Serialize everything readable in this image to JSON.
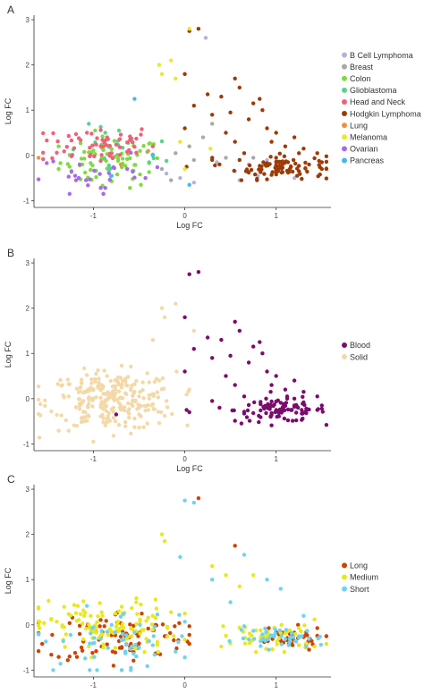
{
  "panels": [
    {
      "letter": "A",
      "chart_data": {
        "type": "scatter",
        "xlabel": "Log FC",
        "ylabel": "Log FC",
        "xlim": [
          -1.65,
          1.6
        ],
        "ylim": [
          -1.15,
          3.1
        ],
        "xticks": [
          -1,
          0,
          1
        ],
        "yticks": [
          -1,
          0,
          1,
          2,
          3
        ],
        "grid": false,
        "legend_position": "right",
        "series": [
          {
            "name": "B Cell Lymphoma",
            "color": "#b4b2dc",
            "points": [
              [
                0.23,
                2.6
              ],
              [
                -0.05,
                -0.5
              ],
              [
                0.6,
                -0.55
              ],
              [
                0.8,
                -0.45
              ],
              [
                1.05,
                -0.3
              ],
              [
                0.9,
                -0.1
              ],
              [
                0.35,
                -0.15
              ],
              [
                0.55,
                -0.35
              ],
              [
                1.2,
                -0.5
              ],
              [
                0.1,
                -0.6
              ],
              [
                0.7,
                -0.2
              ],
              [
                -0.2,
                -0.4
              ]
            ]
          },
          {
            "name": "Breast",
            "color": "#a8a8a8",
            "points": [
              [
                0.3,
                0.7
              ],
              [
                -0.1,
                0.05
              ],
              [
                0.1,
                -0.1
              ],
              [
                -0.25,
                -0.3
              ],
              [
                0.05,
                0.2
              ],
              [
                0.45,
                -0.05
              ],
              [
                -0.15,
                -0.55
              ],
              [
                0.2,
                0.4
              ],
              [
                0.75,
                -0.05
              ],
              [
                1.0,
                -0.2
              ]
            ]
          },
          {
            "name": "Colon",
            "color": "#7ddc3e",
            "points": []
          },
          {
            "name": "Glioblastoma",
            "color": "#55d38e",
            "points": []
          },
          {
            "name": "Head and Neck",
            "color": "#f0607a",
            "points": []
          },
          {
            "name": "Hodgkin Lymphoma",
            "color": "#9b3b06",
            "points": []
          },
          {
            "name": "Lung",
            "color": "#f09040",
            "points": [
              [
                -1.6,
                -0.05
              ],
              [
                -0.7,
                -0.2
              ],
              [
                -0.4,
                0.1
              ]
            ]
          },
          {
            "name": "Melanoma",
            "color": "#e8e830",
            "points": [
              [
                -0.28,
                2.0
              ],
              [
                -0.25,
                1.8
              ],
              [
                -0.15,
                2.1
              ],
              [
                -0.1,
                1.7
              ],
              [
                0.05,
                2.8
              ],
              [
                0.28,
                0.15
              ],
              [
                -0.05,
                0.3
              ],
              [
                0.0,
                -0.3
              ]
            ]
          },
          {
            "name": "Ovarian",
            "color": "#a66be8",
            "points": []
          },
          {
            "name": "Pancreas",
            "color": "#48b8e8",
            "points": [
              [
                -0.55,
                1.25
              ],
              [
                -0.8,
                -0.45
              ],
              [
                -0.35,
                0.0
              ],
              [
                0.05,
                -0.65
              ]
            ]
          }
        ]
      }
    },
    {
      "letter": "B",
      "chart_data": {
        "type": "scatter",
        "xlabel": "Log FC",
        "ylabel": "Log FC",
        "xlim": [
          -1.65,
          1.6
        ],
        "ylim": [
          -1.15,
          3.1
        ],
        "xticks": [
          -1,
          0,
          1
        ],
        "yticks": [
          -1,
          0,
          1,
          2,
          3
        ],
        "grid": false,
        "legend_position": "right",
        "series": [
          {
            "name": "Blood",
            "color": "#7a0c6e",
            "points": []
          },
          {
            "name": "Solid",
            "color": "#f3d9a8",
            "points": []
          }
        ]
      }
    },
    {
      "letter": "C",
      "chart_data": {
        "type": "scatter",
        "xlabel": "Log FC",
        "ylabel": "Log FC",
        "xlim": [
          -1.65,
          1.6
        ],
        "ylim": [
          -1.15,
          3.1
        ],
        "xticks": [
          -1,
          0,
          1
        ],
        "yticks": [
          -1,
          0,
          1,
          2,
          3
        ],
        "grid": false,
        "legend_position": "right",
        "series": [
          {
            "name": "Long",
            "color": "#cc4400",
            "points": []
          },
          {
            "name": "Medium",
            "color": "#e8e81e",
            "points": []
          },
          {
            "name": "Short",
            "color": "#6fd3ee",
            "points": []
          }
        ]
      }
    }
  ]
}
